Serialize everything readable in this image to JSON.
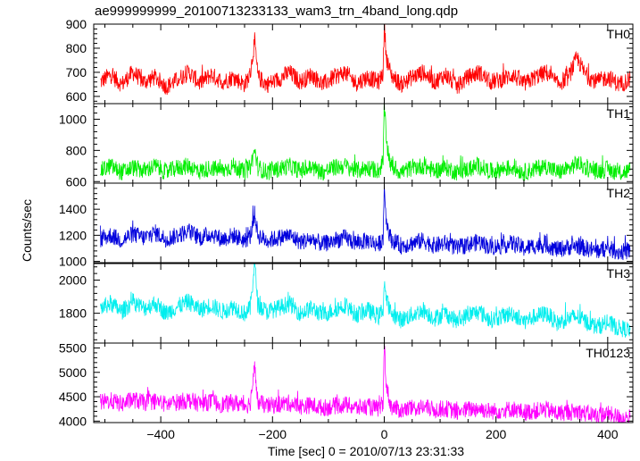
{
  "chart_data": {
    "type": "line",
    "title": "ae999999999_20100713233133_wam3_trn_4band_long.qdp",
    "xlabel": "Time [sec] 0 = 2010/07/13 23:31:33",
    "ylabel": "Counts/sec",
    "xlim": [
      -520,
      445
    ],
    "xticks": [
      -400,
      -200,
      0,
      200,
      400
    ],
    "panels": [
      {
        "name": "TH0",
        "color": "#ff0000",
        "ylim": [
          570,
          900
        ],
        "yticks": [
          600,
          700,
          800,
          900
        ],
        "points": [
          [
            -508,
            660
          ],
          [
            -490,
            690
          ],
          [
            -470,
            650
          ],
          [
            -450,
            700
          ],
          [
            -430,
            660
          ],
          [
            -410,
            680
          ],
          [
            -390,
            640
          ],
          [
            -370,
            670
          ],
          [
            -350,
            700
          ],
          [
            -330,
            655
          ],
          [
            -310,
            690
          ],
          [
            -290,
            660
          ],
          [
            -270,
            680
          ],
          [
            -250,
            650
          ],
          [
            -240,
            690
          ],
          [
            -232,
            830
          ],
          [
            -226,
            680
          ],
          [
            -210,
            650
          ],
          [
            -190,
            670
          ],
          [
            -170,
            700
          ],
          [
            -150,
            660
          ],
          [
            -130,
            690
          ],
          [
            -110,
            650
          ],
          [
            -90,
            680
          ],
          [
            -70,
            700
          ],
          [
            -50,
            655
          ],
          [
            -30,
            680
          ],
          [
            -10,
            660
          ],
          [
            -2,
            700
          ],
          [
            0,
            900
          ],
          [
            4,
            760
          ],
          [
            12,
            690
          ],
          [
            30,
            650
          ],
          [
            50,
            680
          ],
          [
            70,
            700
          ],
          [
            90,
            660
          ],
          [
            110,
            690
          ],
          [
            130,
            640
          ],
          [
            150,
            680
          ],
          [
            170,
            700
          ],
          [
            190,
            660
          ],
          [
            210,
            670
          ],
          [
            230,
            690
          ],
          [
            250,
            650
          ],
          [
            270,
            680
          ],
          [
            290,
            700
          ],
          [
            310,
            650
          ],
          [
            330,
            680
          ],
          [
            345,
            760
          ],
          [
            360,
            690
          ],
          [
            380,
            660
          ],
          [
            400,
            680
          ],
          [
            420,
            650
          ],
          [
            440,
            670
          ]
        ]
      },
      {
        "name": "TH1",
        "color": "#00ee00",
        "ylim": [
          590,
          1100
        ],
        "yticks": [
          600,
          800,
          1000
        ],
        "points": [
          [
            -508,
            670
          ],
          [
            -490,
            700
          ],
          [
            -470,
            660
          ],
          [
            -450,
            690
          ],
          [
            -430,
            670
          ],
          [
            -410,
            700
          ],
          [
            -390,
            660
          ],
          [
            -370,
            690
          ],
          [
            -350,
            700
          ],
          [
            -330,
            665
          ],
          [
            -310,
            690
          ],
          [
            -290,
            670
          ],
          [
            -270,
            700
          ],
          [
            -250,
            660
          ],
          [
            -240,
            690
          ],
          [
            -232,
            800
          ],
          [
            -226,
            690
          ],
          [
            -210,
            660
          ],
          [
            -190,
            680
          ],
          [
            -170,
            700
          ],
          [
            -150,
            670
          ],
          [
            -130,
            690
          ],
          [
            -110,
            660
          ],
          [
            -90,
            690
          ],
          [
            -70,
            700
          ],
          [
            -50,
            670
          ],
          [
            -30,
            690
          ],
          [
            -10,
            670
          ],
          [
            -2,
            720
          ],
          [
            0,
            1100
          ],
          [
            4,
            850
          ],
          [
            12,
            700
          ],
          [
            30,
            660
          ],
          [
            50,
            690
          ],
          [
            70,
            700
          ],
          [
            90,
            670
          ],
          [
            110,
            690
          ],
          [
            130,
            660
          ],
          [
            150,
            680
          ],
          [
            170,
            700
          ],
          [
            190,
            665
          ],
          [
            210,
            680
          ],
          [
            230,
            690
          ],
          [
            250,
            660
          ],
          [
            270,
            680
          ],
          [
            290,
            700
          ],
          [
            310,
            660
          ],
          [
            330,
            680
          ],
          [
            345,
            720
          ],
          [
            360,
            690
          ],
          [
            380,
            665
          ],
          [
            400,
            680
          ],
          [
            420,
            655
          ],
          [
            440,
            670
          ]
        ]
      },
      {
        "name": "TH2",
        "color": "#0000dd",
        "ylim": [
          990,
          1600
        ],
        "yticks": [
          1000,
          1200,
          1400
        ],
        "points": [
          [
            -508,
            1170
          ],
          [
            -490,
            1200
          ],
          [
            -470,
            1160
          ],
          [
            -450,
            1210
          ],
          [
            -430,
            1180
          ],
          [
            -410,
            1220
          ],
          [
            -390,
            1170
          ],
          [
            -370,
            1200
          ],
          [
            -350,
            1230
          ],
          [
            -330,
            1180
          ],
          [
            -310,
            1210
          ],
          [
            -290,
            1170
          ],
          [
            -270,
            1200
          ],
          [
            -250,
            1160
          ],
          [
            -240,
            1190
          ],
          [
            -232,
            1360
          ],
          [
            -226,
            1200
          ],
          [
            -210,
            1160
          ],
          [
            -190,
            1180
          ],
          [
            -170,
            1200
          ],
          [
            -150,
            1150
          ],
          [
            -130,
            1170
          ],
          [
            -110,
            1130
          ],
          [
            -90,
            1160
          ],
          [
            -70,
            1180
          ],
          [
            -50,
            1140
          ],
          [
            -30,
            1160
          ],
          [
            -10,
            1130
          ],
          [
            -2,
            1180
          ],
          [
            0,
            1580
          ],
          [
            4,
            1300
          ],
          [
            12,
            1170
          ],
          [
            30,
            1120
          ],
          [
            50,
            1140
          ],
          [
            70,
            1160
          ],
          [
            90,
            1120
          ],
          [
            110,
            1140
          ],
          [
            130,
            1100
          ],
          [
            150,
            1130
          ],
          [
            170,
            1150
          ],
          [
            190,
            1110
          ],
          [
            210,
            1120
          ],
          [
            230,
            1140
          ],
          [
            250,
            1100
          ],
          [
            270,
            1120
          ],
          [
            290,
            1130
          ],
          [
            310,
            1090
          ],
          [
            330,
            1110
          ],
          [
            345,
            1120
          ],
          [
            360,
            1100
          ],
          [
            380,
            1080
          ],
          [
            400,
            1100
          ],
          [
            420,
            1070
          ],
          [
            440,
            1080
          ]
        ]
      },
      {
        "name": "TH3",
        "color": "#00eeee",
        "ylim": [
          1620,
          2100
        ],
        "yticks": [
          1800,
          2000
        ],
        "points": [
          [
            -508,
            1830
          ],
          [
            -490,
            1860
          ],
          [
            -470,
            1810
          ],
          [
            -450,
            1870
          ],
          [
            -430,
            1830
          ],
          [
            -410,
            1860
          ],
          [
            -390,
            1800
          ],
          [
            -370,
            1840
          ],
          [
            -350,
            1870
          ],
          [
            -330,
            1820
          ],
          [
            -310,
            1850
          ],
          [
            -290,
            1810
          ],
          [
            -270,
            1840
          ],
          [
            -250,
            1800
          ],
          [
            -240,
            1830
          ],
          [
            -232,
            2100
          ],
          [
            -226,
            1850
          ],
          [
            -210,
            1810
          ],
          [
            -190,
            1830
          ],
          [
            -170,
            1860
          ],
          [
            -150,
            1800
          ],
          [
            -130,
            1830
          ],
          [
            -110,
            1790
          ],
          [
            -90,
            1820
          ],
          [
            -70,
            1850
          ],
          [
            -50,
            1790
          ],
          [
            -30,
            1820
          ],
          [
            -10,
            1780
          ],
          [
            -2,
            1830
          ],
          [
            0,
            1990
          ],
          [
            4,
            1880
          ],
          [
            12,
            1800
          ],
          [
            30,
            1760
          ],
          [
            50,
            1790
          ],
          [
            70,
            1820
          ],
          [
            90,
            1770
          ],
          [
            110,
            1800
          ],
          [
            130,
            1750
          ],
          [
            150,
            1790
          ],
          [
            170,
            1810
          ],
          [
            190,
            1760
          ],
          [
            210,
            1780
          ],
          [
            230,
            1800
          ],
          [
            250,
            1750
          ],
          [
            270,
            1780
          ],
          [
            290,
            1800
          ],
          [
            310,
            1740
          ],
          [
            330,
            1770
          ],
          [
            345,
            1780
          ],
          [
            360,
            1750
          ],
          [
            380,
            1720
          ],
          [
            400,
            1740
          ],
          [
            420,
            1710
          ],
          [
            440,
            1700
          ]
        ]
      },
      {
        "name": "TH0123",
        "color": "#ff00ff",
        "ylim": [
          3970,
          5600
        ],
        "yticks": [
          4000,
          4500,
          5000,
          5500
        ],
        "points": [
          [
            -508,
            4380
          ],
          [
            -490,
            4420
          ],
          [
            -470,
            4350
          ],
          [
            -450,
            4440
          ],
          [
            -430,
            4380
          ],
          [
            -410,
            4410
          ],
          [
            -390,
            4340
          ],
          [
            -370,
            4390
          ],
          [
            -350,
            4430
          ],
          [
            -330,
            4360
          ],
          [
            -310,
            4400
          ],
          [
            -290,
            4340
          ],
          [
            -270,
            4380
          ],
          [
            -250,
            4320
          ],
          [
            -240,
            4360
          ],
          [
            -232,
            5100
          ],
          [
            -226,
            4380
          ],
          [
            -210,
            4310
          ],
          [
            -190,
            4340
          ],
          [
            -170,
            4370
          ],
          [
            -150,
            4300
          ],
          [
            -130,
            4330
          ],
          [
            -110,
            4270
          ],
          [
            -90,
            4310
          ],
          [
            -70,
            4340
          ],
          [
            -50,
            4270
          ],
          [
            -30,
            4300
          ],
          [
            -10,
            4250
          ],
          [
            -2,
            4320
          ],
          [
            0,
            5600
          ],
          [
            4,
            4700
          ],
          [
            12,
            4300
          ],
          [
            30,
            4220
          ],
          [
            50,
            4260
          ],
          [
            70,
            4290
          ],
          [
            90,
            4230
          ],
          [
            110,
            4260
          ],
          [
            130,
            4190
          ],
          [
            150,
            4240
          ],
          [
            170,
            4260
          ],
          [
            190,
            4200
          ],
          [
            210,
            4220
          ],
          [
            230,
            4250
          ],
          [
            250,
            4180
          ],
          [
            270,
            4210
          ],
          [
            290,
            4240
          ],
          [
            310,
            4160
          ],
          [
            330,
            4190
          ],
          [
            345,
            4200
          ],
          [
            360,
            4160
          ],
          [
            380,
            4120
          ],
          [
            400,
            4150
          ],
          [
            420,
            4080
          ],
          [
            440,
            4060
          ]
        ]
      }
    ]
  }
}
